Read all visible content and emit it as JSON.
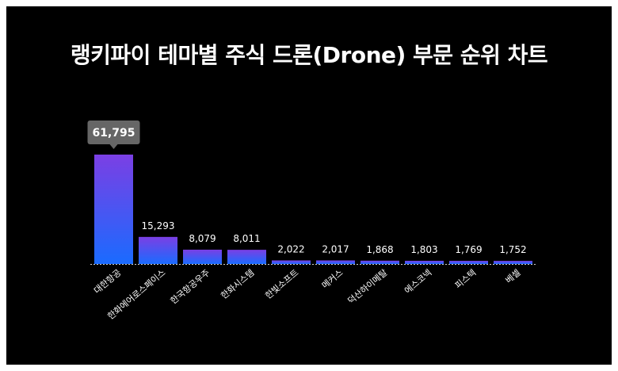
{
  "title": "랭키파이 테마별 주식 드론(Drone) 부문 순위 차트",
  "colors": {
    "background": "#000000",
    "bar_top": "#7b3fe4",
    "bar_bottom": "#1a6bff",
    "tooltip_bg": "#666666",
    "text": "#ffffff"
  },
  "chart_data": {
    "type": "bar",
    "categories": [
      "대한항공",
      "한화에어로스페이스",
      "한국항공우주",
      "한화시스템",
      "한빛소프트",
      "메커스",
      "덕산하이메탈",
      "에스코넥",
      "피스텍",
      "베셀"
    ],
    "values": [
      61795,
      15293,
      8079,
      8011,
      2022,
      2017,
      1868,
      1803,
      1769,
      1752
    ],
    "value_labels": [
      "61,795",
      "15,293",
      "8,079",
      "8,011",
      "2,022",
      "2,017",
      "1,868",
      "1,803",
      "1,769",
      "1,752"
    ],
    "highlight_index": 0,
    "xlabel": "",
    "ylabel": "",
    "ylim": [
      0,
      61795
    ],
    "grid": false,
    "legend": "none"
  }
}
